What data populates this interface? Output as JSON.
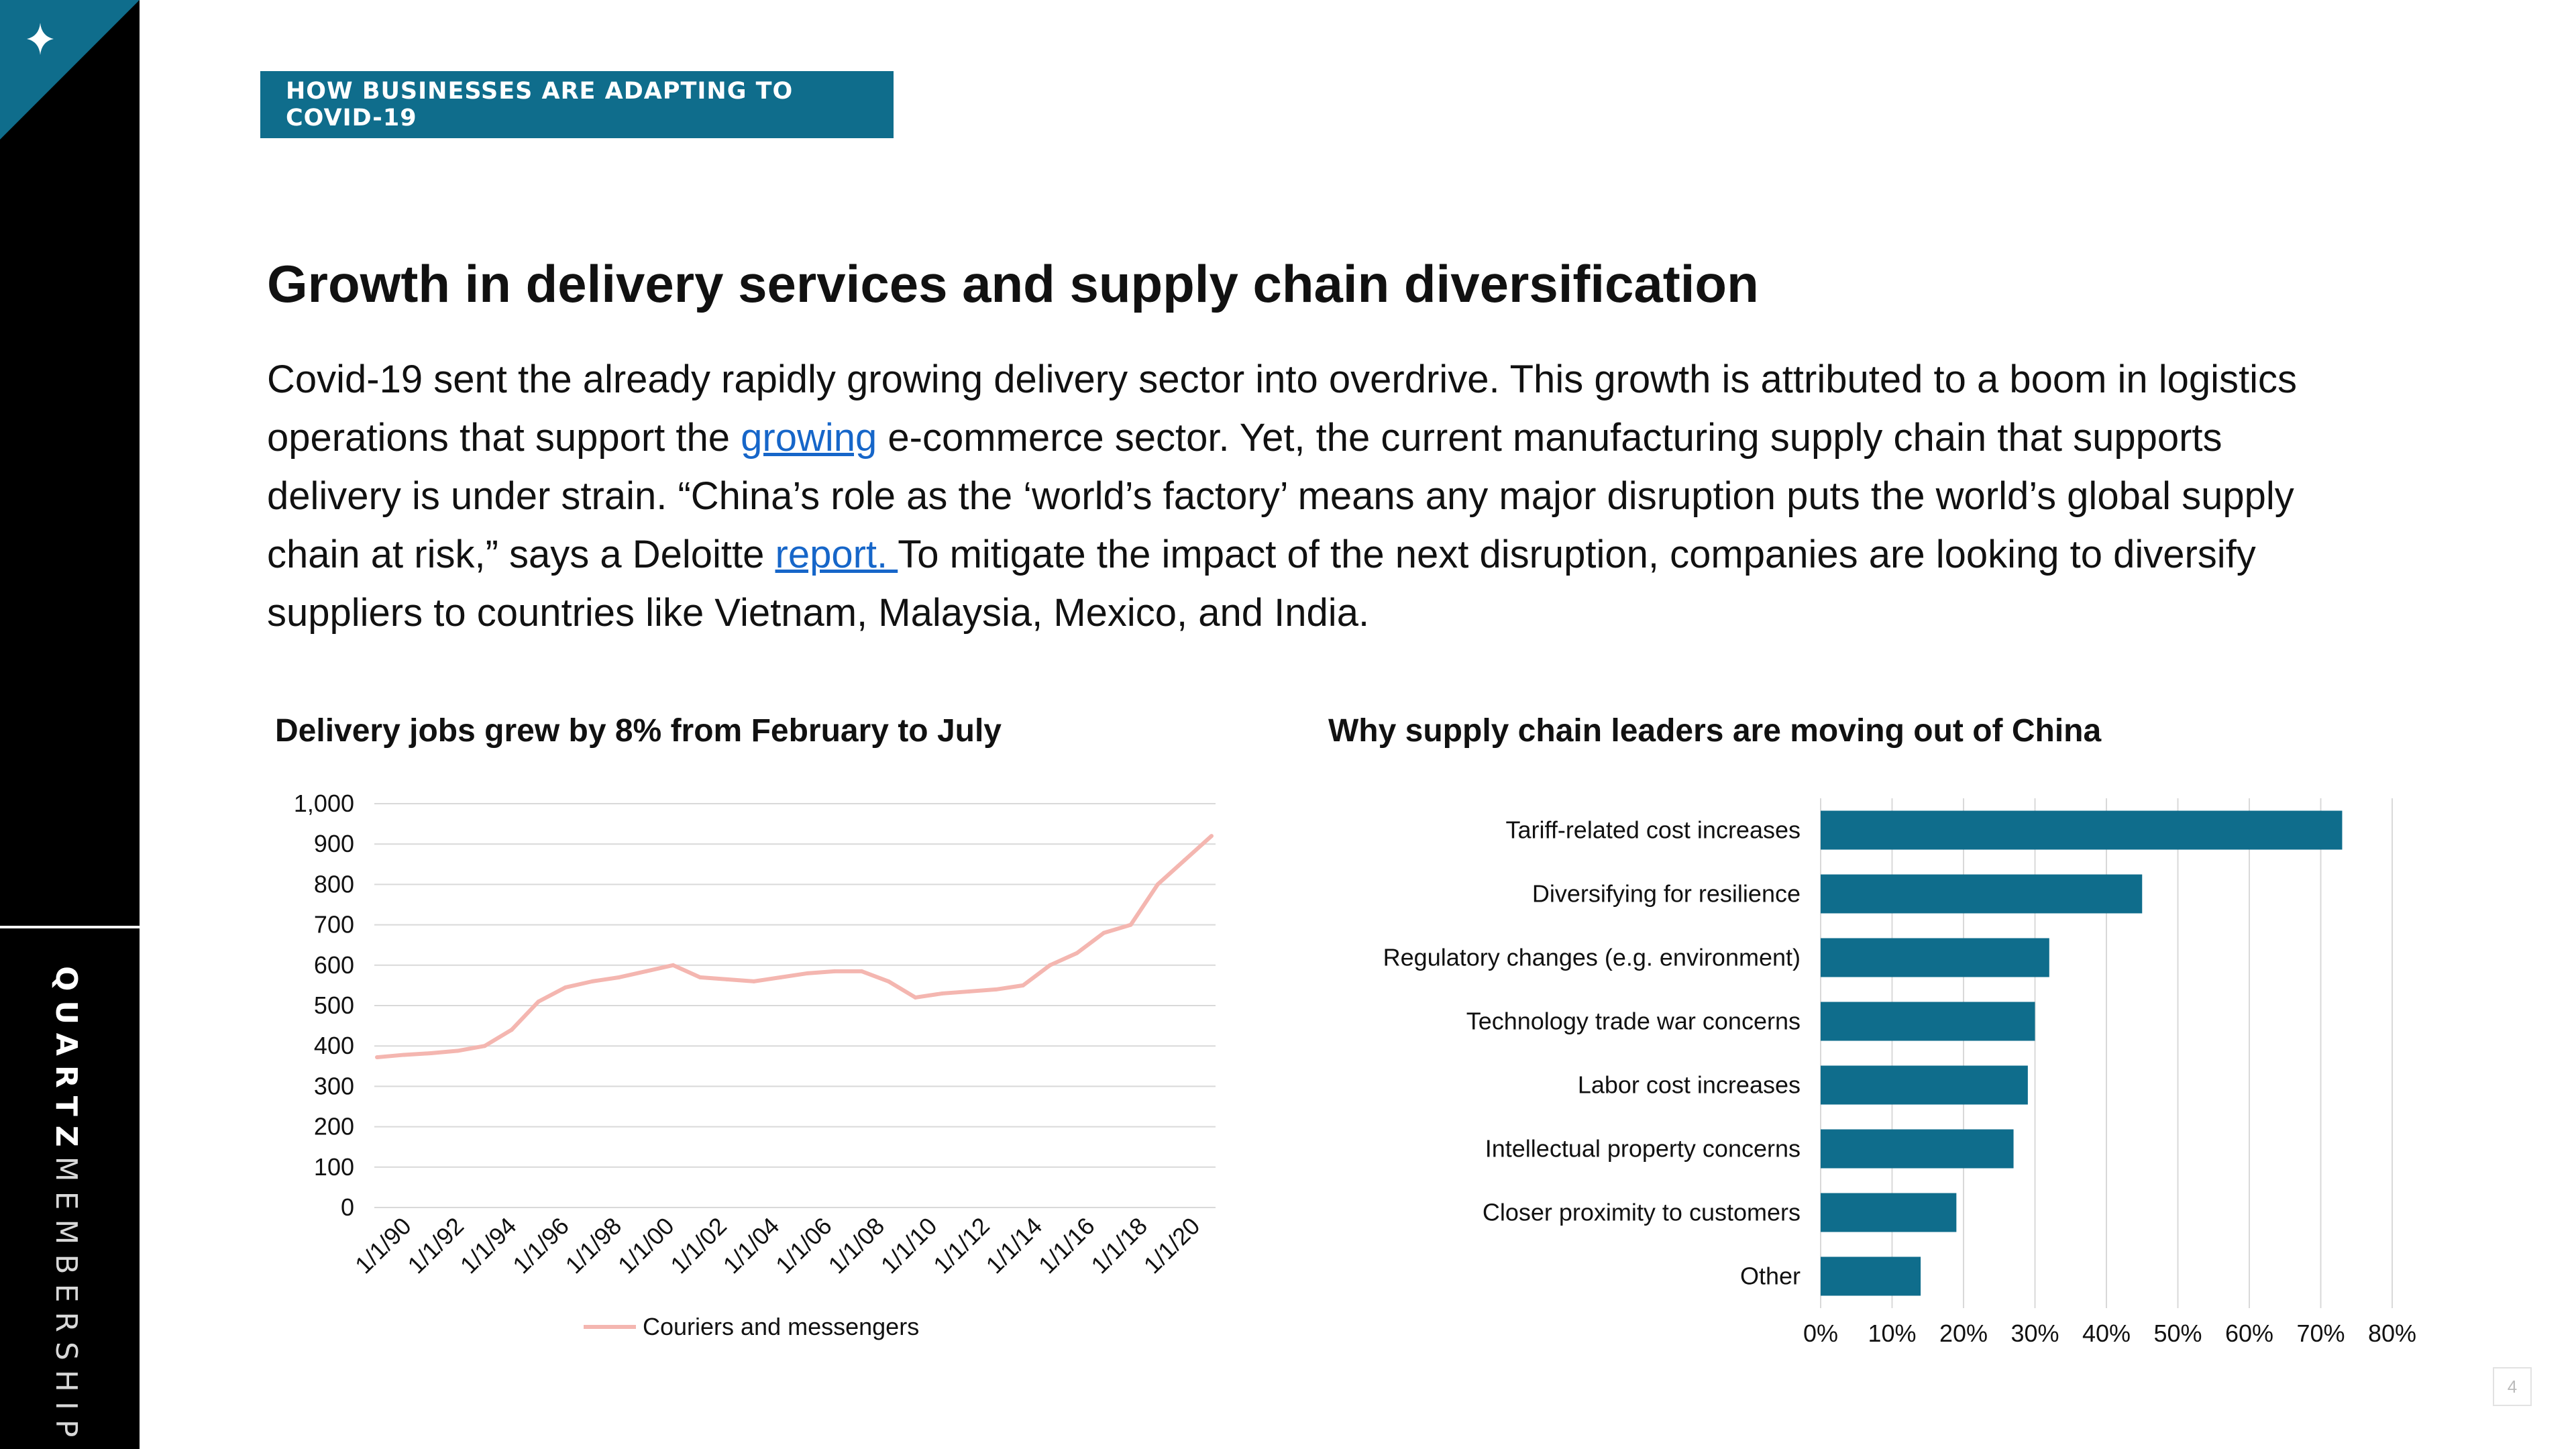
{
  "sidebar": {
    "brand_bold": "QUARTZ",
    "brand_light": "MEMBERSHIP",
    "corner_icon": "sparkle-icon",
    "accent": "#0f6d8c"
  },
  "section_tag": "HOW BUSINESSES ARE ADAPTING TO COVID-19",
  "title": "Growth in delivery services and supply chain diversification",
  "intro": {
    "p1": "Covid-19 sent the already rapidly growing delivery sector into overdrive. This growth is attributed to a boom in logistics operations that support the ",
    "link1": "growing",
    "p2": " e-commerce sector. Yet, the current manufacturing supply chain that supports delivery is under strain. “China’s role as the ‘world’s factory’ means any major disruption puts the world’s global supply chain at risk,” says a Deloitte ",
    "link2": "report. ",
    "p3": "To mitigate the impact of the next disruption, companies are looking to diversify suppliers to countries like Vietnam, Malaysia, Mexico, and India."
  },
  "page_number": "4",
  "chart_data": [
    {
      "type": "line",
      "title": "Delivery jobs grew by 8% from February to July",
      "x": [
        "1/1/90",
        "1/1/91",
        "1/1/92",
        "1/1/93",
        "1/1/94",
        "1/1/95",
        "1/1/96",
        "1/1/97",
        "1/1/98",
        "1/1/99",
        "1/1/00",
        "1/1/01",
        "1/1/02",
        "1/1/03",
        "1/1/04",
        "1/1/05",
        "1/1/06",
        "1/1/07",
        "1/1/08",
        "1/1/09",
        "1/1/10",
        "1/1/11",
        "1/1/12",
        "1/1/13",
        "1/1/14",
        "1/1/15",
        "1/1/16",
        "1/1/17",
        "1/1/18",
        "1/1/19",
        "1/1/20",
        "7/1/20"
      ],
      "x_tick_labels": [
        "1/1/90",
        "1/1/92",
        "1/1/94",
        "1/1/96",
        "1/1/98",
        "1/1/00",
        "1/1/02",
        "1/1/04",
        "1/1/06",
        "1/1/08",
        "1/1/10",
        "1/1/12",
        "1/1/14",
        "1/1/16",
        "1/1/18",
        "1/1/20"
      ],
      "series": [
        {
          "name": "Couriers and messengers",
          "color": "#f4b6b0",
          "values": [
            372,
            378,
            382,
            388,
            400,
            440,
            510,
            545,
            560,
            570,
            585,
            600,
            570,
            565,
            560,
            570,
            580,
            585,
            585,
            560,
            520,
            530,
            535,
            540,
            550,
            600,
            630,
            680,
            700,
            800,
            860,
            920
          ]
        }
      ],
      "y_ticks": [
        "0",
        "100",
        "200",
        "300",
        "400",
        "500",
        "600",
        "700",
        "800",
        "900",
        "1,000"
      ],
      "ylim": [
        0,
        1000
      ],
      "grid": true,
      "legend": "bottom"
    },
    {
      "type": "bar",
      "orientation": "horizontal",
      "title": "Why supply chain leaders are moving out of China",
      "categories": [
        "Tariff-related cost increases",
        "Diversifying for resilience",
        "Regulatory changes (e.g. environment)",
        "Technology trade war concerns",
        "Labor cost increases",
        "Intellectual property concerns",
        "Closer proximity to customers",
        "Other"
      ],
      "values": [
        0.73,
        0.45,
        0.32,
        0.3,
        0.29,
        0.27,
        0.19,
        0.14
      ],
      "color": "#0f6d8c",
      "x_ticks": [
        "0%",
        "10%",
        "20%",
        "30%",
        "40%",
        "50%",
        "60%",
        "70%",
        "80%"
      ],
      "xlim": [
        0,
        0.8
      ],
      "grid": true
    }
  ]
}
